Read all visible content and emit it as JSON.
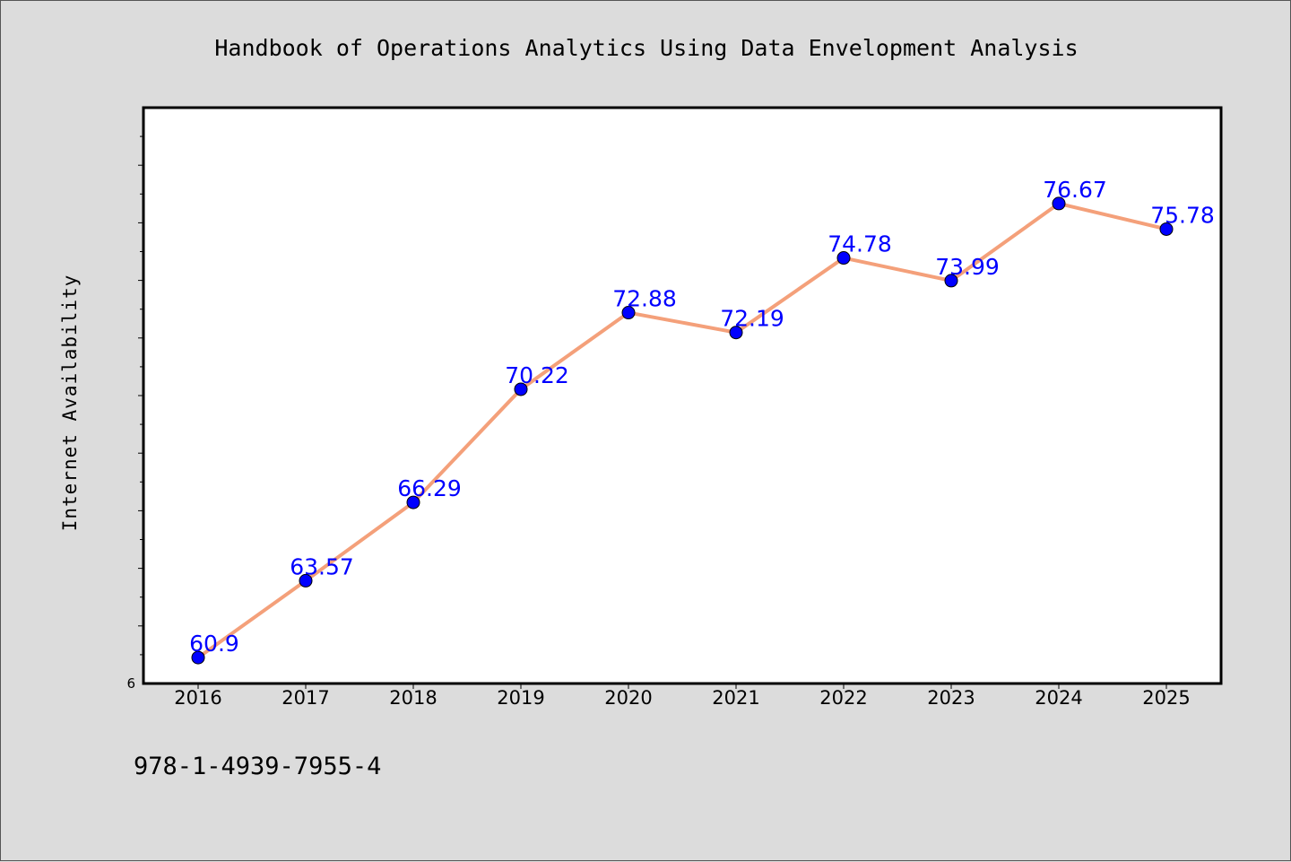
{
  "chart_data": {
    "type": "line",
    "title": "Handbook of Operations Analytics Using Data Envelopment Analysis",
    "xlabel": "",
    "ylabel": "Internet Availability",
    "categories": [
      "2016",
      "2017",
      "2018",
      "2019",
      "2020",
      "2021",
      "2022",
      "2023",
      "2024",
      "2025"
    ],
    "series": [
      {
        "values": [
          60.9,
          63.57,
          66.29,
          70.22,
          72.88,
          72.19,
          74.78,
          73.99,
          76.67,
          75.78
        ],
        "data_labels": [
          "60.9",
          "63.57",
          "66.29",
          "70.22",
          "72.88",
          "72.19",
          "74.78",
          "73.99",
          "76.67",
          "75.78"
        ]
      }
    ],
    "ylim": [
      60,
      80
    ],
    "y_tick_labels": [
      "6"
    ],
    "grid": false,
    "legend": "none",
    "footer": "978-1-4939-7955-4",
    "colors": {
      "line": "#f4a07a",
      "marker": "#0000ff",
      "marker_edge": "#000000",
      "data_label": "#0000ff",
      "background": "#dcdcdc",
      "plot_background": "#ffffff"
    }
  }
}
